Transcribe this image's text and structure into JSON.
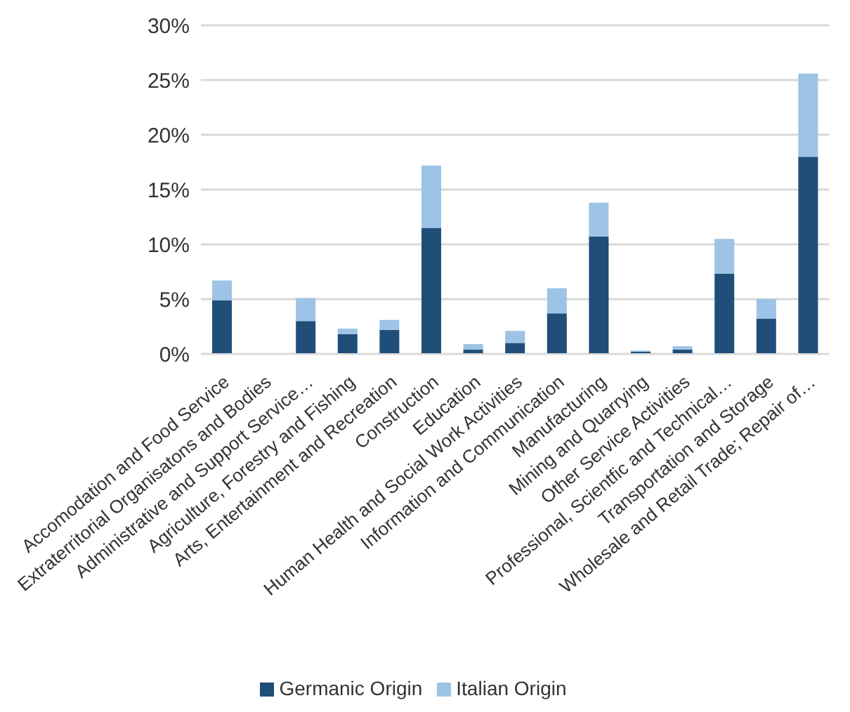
{
  "chart_data": {
    "type": "bar",
    "stacked": true,
    "categories": [
      "Accomodation and Food Service",
      "Extraterritorial Organisatons and Bodies",
      "Administrative and Support Service…",
      "Agriculture, Forestry and Fishing",
      "Arts, Entertainment and Recreation",
      "Construction",
      "Education",
      "Human Health and Social Work Activities",
      "Information and Communication",
      "Manufacturing",
      "Mining and Quarrying",
      "Other Service Activities",
      "Professional, Scientfic and Technical…",
      "Transportation and Storage",
      "Wholesale and Retail Trade; Repair of…"
    ],
    "series": [
      {
        "name": "Germanic Origin",
        "color": "#1f4e79",
        "values": [
          4.9,
          0,
          3.0,
          1.8,
          2.2,
          11.5,
          0.4,
          1.0,
          3.7,
          10.7,
          0.2,
          0.4,
          7.3,
          3.2,
          18.0
        ]
      },
      {
        "name": "Italian Origin",
        "color": "#9dc3e6",
        "values": [
          1.8,
          0,
          2.1,
          0.5,
          0.9,
          5.7,
          0.5,
          1.1,
          2.3,
          3.1,
          0.1,
          0.3,
          3.2,
          1.8,
          7.6
        ]
      }
    ],
    "ylim": [
      0,
      30
    ],
    "yticks": [
      {
        "value": 0,
        "label": "0%"
      },
      {
        "value": 5,
        "label": "5%"
      },
      {
        "value": 10,
        "label": "10%"
      },
      {
        "value": 15,
        "label": "15%"
      },
      {
        "value": 20,
        "label": "20%"
      },
      {
        "value": 25,
        "label": "25%"
      },
      {
        "value": 30,
        "label": "30%"
      }
    ],
    "grid": "y",
    "legend": "bottom"
  }
}
